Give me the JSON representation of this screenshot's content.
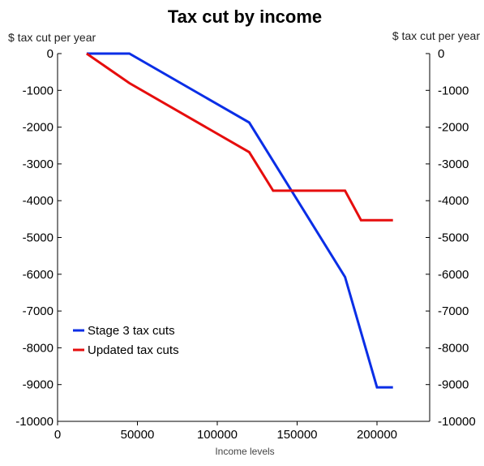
{
  "chart_data": {
    "type": "line",
    "title": "Tax cut by income",
    "ylabel_left": "$ tax cut per year",
    "ylabel_right": "$ tax cut per year",
    "xlabel": "Income levels",
    "xlim": [
      0,
      233000
    ],
    "ylim": [
      -10000,
      0
    ],
    "x_ticks": [
      0,
      50000,
      100000,
      150000,
      200000
    ],
    "x_tick_labels": [
      "0",
      "50000",
      "100000",
      "150000",
      "200000"
    ],
    "y_ticks": [
      0,
      -1000,
      -2000,
      -3000,
      -4000,
      -5000,
      -6000,
      -7000,
      -8000,
      -9000,
      -10000
    ],
    "y_tick_labels": [
      "0",
      "-1000",
      "-2000",
      "-3000",
      "-4000",
      "-5000",
      "-6000",
      "-7000",
      "-8000",
      "-9000",
      "-10000"
    ],
    "grid": false,
    "legend_position": "bottom-left",
    "series": [
      {
        "name": "Stage 3 tax cuts",
        "color": "#0a2ee6",
        "x": [
          18200,
          45000,
          120000,
          180000,
          200000,
          210000
        ],
        "y": [
          0,
          0,
          -1875,
          -6075,
          -9075,
          -9075
        ]
      },
      {
        "name": "Updated tax cuts",
        "color": "#e60d0d",
        "x": [
          18200,
          45000,
          120000,
          135000,
          180000,
          190000,
          210000
        ],
        "y": [
          0,
          -804,
          -2679,
          -3729,
          -3729,
          -4529,
          -4529
        ]
      }
    ]
  }
}
